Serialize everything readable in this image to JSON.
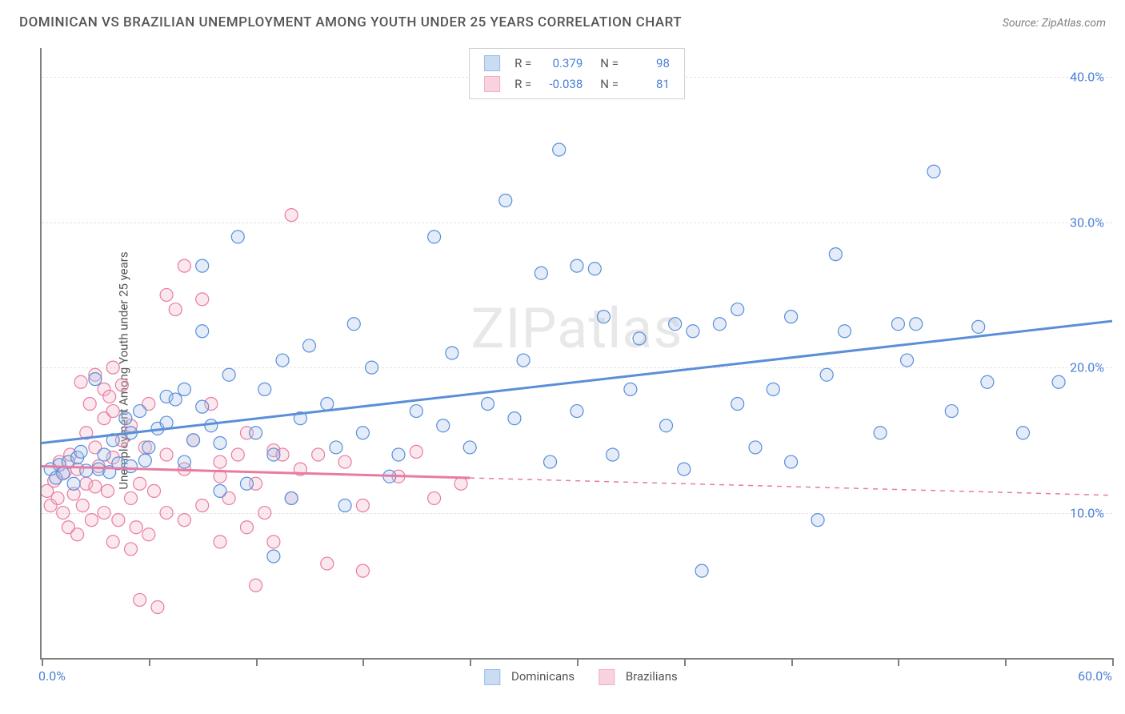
{
  "title": "DOMINICAN VS BRAZILIAN UNEMPLOYMENT AMONG YOUTH UNDER 25 YEARS CORRELATION CHART",
  "source_label": "Source: ZipAtlas.com",
  "ylabel": "Unemployment Among Youth under 25 years",
  "watermark": "ZIPatlas",
  "chart": {
    "type": "scatter",
    "xlim": [
      0,
      60
    ],
    "ylim": [
      0,
      42
    ],
    "y_ticks": [
      10.0,
      20.0,
      30.0,
      40.0
    ],
    "y_tick_labels": [
      "10.0%",
      "20.0%",
      "30.0%",
      "40.0%"
    ],
    "x_tick_minor": [
      0,
      6,
      12,
      18,
      24,
      30,
      36,
      42,
      48,
      54,
      60
    ],
    "x_left_label": "0.0%",
    "x_right_label": "60.0%",
    "background_color": "#ffffff",
    "grid_color": "#e4e4e4",
    "axis_color": "#808080",
    "marker_radius": 8,
    "marker_stroke_width": 1.2,
    "marker_fill_opacity": 0.32,
    "series": [
      {
        "name": "Dominicans",
        "r_value": "0.379",
        "n_value": "98",
        "stroke": "#5a8fd8",
        "fill": "#a7c5ea",
        "trend": {
          "y_at_x0": 14.8,
          "y_at_x60": 23.2,
          "solid_to_x": 60,
          "line_width": 3
        },
        "points": [
          [
            0.5,
            13.0
          ],
          [
            0.8,
            12.4
          ],
          [
            1.0,
            13.3
          ],
          [
            1.2,
            12.7
          ],
          [
            1.5,
            13.5
          ],
          [
            1.8,
            12.0
          ],
          [
            2.0,
            13.8
          ],
          [
            2.2,
            14.2
          ],
          [
            2.5,
            12.9
          ],
          [
            3.0,
            19.2
          ],
          [
            3.2,
            13.0
          ],
          [
            3.5,
            14.0
          ],
          [
            3.8,
            12.8
          ],
          [
            4.0,
            15.0
          ],
          [
            4.3,
            13.4
          ],
          [
            4.7,
            16.5
          ],
          [
            5.0,
            13.2
          ],
          [
            5.0,
            15.5
          ],
          [
            5.5,
            17.0
          ],
          [
            5.8,
            13.6
          ],
          [
            6.0,
            14.5
          ],
          [
            6.5,
            15.8
          ],
          [
            7.0,
            16.2
          ],
          [
            7.0,
            18.0
          ],
          [
            7.5,
            17.8
          ],
          [
            8.0,
            13.5
          ],
          [
            8.0,
            18.5
          ],
          [
            8.5,
            15.0
          ],
          [
            9.0,
            22.5
          ],
          [
            9.0,
            17.3
          ],
          [
            9.0,
            27.0
          ],
          [
            9.5,
            16.0
          ],
          [
            10.0,
            11.5
          ],
          [
            10.0,
            14.8
          ],
          [
            10.5,
            19.5
          ],
          [
            11.0,
            29.0
          ],
          [
            11.5,
            12.0
          ],
          [
            12.0,
            15.5
          ],
          [
            12.5,
            18.5
          ],
          [
            13.0,
            7.0
          ],
          [
            13.0,
            14.0
          ],
          [
            13.5,
            20.5
          ],
          [
            14.0,
            11.0
          ],
          [
            14.5,
            16.5
          ],
          [
            15.0,
            21.5
          ],
          [
            16.0,
            17.5
          ],
          [
            16.5,
            14.5
          ],
          [
            17.0,
            10.5
          ],
          [
            17.5,
            23.0
          ],
          [
            18.0,
            15.5
          ],
          [
            18.5,
            20.0
          ],
          [
            19.5,
            12.5
          ],
          [
            20.0,
            14.0
          ],
          [
            21.0,
            17.0
          ],
          [
            22.0,
            29.0
          ],
          [
            22.5,
            16.0
          ],
          [
            23.0,
            21.0
          ],
          [
            24.0,
            14.5
          ],
          [
            25.0,
            17.5
          ],
          [
            26.0,
            31.5
          ],
          [
            26.5,
            16.5
          ],
          [
            27.0,
            20.5
          ],
          [
            28.0,
            26.5
          ],
          [
            28.5,
            13.5
          ],
          [
            29.0,
            35.0
          ],
          [
            30.0,
            27.0
          ],
          [
            30.0,
            17.0
          ],
          [
            31.0,
            26.8
          ],
          [
            31.5,
            23.5
          ],
          [
            32.0,
            14.0
          ],
          [
            33.0,
            18.5
          ],
          [
            33.5,
            22.0
          ],
          [
            35.0,
            16.0
          ],
          [
            35.5,
            23.0
          ],
          [
            36.0,
            13.0
          ],
          [
            36.5,
            22.5
          ],
          [
            37.0,
            6.0
          ],
          [
            38.0,
            23.0
          ],
          [
            39.0,
            17.5
          ],
          [
            39.0,
            24.0
          ],
          [
            40.0,
            14.5
          ],
          [
            41.0,
            18.5
          ],
          [
            42.0,
            23.5
          ],
          [
            42.0,
            13.5
          ],
          [
            43.5,
            9.5
          ],
          [
            44.0,
            19.5
          ],
          [
            44.5,
            27.8
          ],
          [
            45.0,
            22.5
          ],
          [
            47.0,
            15.5
          ],
          [
            48.0,
            23.0
          ],
          [
            48.5,
            20.5
          ],
          [
            49.0,
            23.0
          ],
          [
            50.0,
            33.5
          ],
          [
            51.0,
            17.0
          ],
          [
            52.5,
            22.8
          ],
          [
            53.0,
            19.0
          ],
          [
            55.0,
            15.5
          ],
          [
            57.0,
            19.0
          ]
        ]
      },
      {
        "name": "Brazilians",
        "r_value": "-0.038",
        "n_value": "81",
        "stroke": "#e87ca0",
        "fill": "#f4b6cb",
        "trend": {
          "y_at_x0": 13.2,
          "y_at_x60": 11.2,
          "solid_to_x": 24,
          "line_width": 3
        },
        "points": [
          [
            0.3,
            11.5
          ],
          [
            0.5,
            10.5
          ],
          [
            0.7,
            12.2
          ],
          [
            0.9,
            11.0
          ],
          [
            1.0,
            13.5
          ],
          [
            1.2,
            10.0
          ],
          [
            1.3,
            12.8
          ],
          [
            1.5,
            9.0
          ],
          [
            1.6,
            14.0
          ],
          [
            1.8,
            11.3
          ],
          [
            2.0,
            13.0
          ],
          [
            2.0,
            8.5
          ],
          [
            2.2,
            19.0
          ],
          [
            2.3,
            10.5
          ],
          [
            2.5,
            12.0
          ],
          [
            2.5,
            15.5
          ],
          [
            2.7,
            17.5
          ],
          [
            2.8,
            9.5
          ],
          [
            3.0,
            19.5
          ],
          [
            3.0,
            11.8
          ],
          [
            3.0,
            14.5
          ],
          [
            3.2,
            13.2
          ],
          [
            3.5,
            16.5
          ],
          [
            3.5,
            10.0
          ],
          [
            3.5,
            18.5
          ],
          [
            3.7,
            11.5
          ],
          [
            3.8,
            18.0
          ],
          [
            4.0,
            8.0
          ],
          [
            4.0,
            17.0
          ],
          [
            4.0,
            13.8
          ],
          [
            4.0,
            20.0
          ],
          [
            4.3,
            9.5
          ],
          [
            4.5,
            15.0
          ],
          [
            4.5,
            18.8
          ],
          [
            5.0,
            7.5
          ],
          [
            5.0,
            11.0
          ],
          [
            5.0,
            16.0
          ],
          [
            5.3,
            9.0
          ],
          [
            5.5,
            12.0
          ],
          [
            5.5,
            4.0
          ],
          [
            5.8,
            14.5
          ],
          [
            6.0,
            8.5
          ],
          [
            6.0,
            17.5
          ],
          [
            6.3,
            11.5
          ],
          [
            6.5,
            3.5
          ],
          [
            7.0,
            10.0
          ],
          [
            7.0,
            14.0
          ],
          [
            7.0,
            25.0
          ],
          [
            7.5,
            24.0
          ],
          [
            8.0,
            27.0
          ],
          [
            8.0,
            9.5
          ],
          [
            8.0,
            13.0
          ],
          [
            8.5,
            15.0
          ],
          [
            9.0,
            24.7
          ],
          [
            9.0,
            10.5
          ],
          [
            9.5,
            17.5
          ],
          [
            10.0,
            8.0
          ],
          [
            10.0,
            13.5
          ],
          [
            10.0,
            12.5
          ],
          [
            10.5,
            11.0
          ],
          [
            11.0,
            14.0
          ],
          [
            11.5,
            9.0
          ],
          [
            11.5,
            15.5
          ],
          [
            12.0,
            5.0
          ],
          [
            12.0,
            12.0
          ],
          [
            12.5,
            10.0
          ],
          [
            13.0,
            8.0
          ],
          [
            13.0,
            14.3
          ],
          [
            13.5,
            14.0
          ],
          [
            14.0,
            30.5
          ],
          [
            14.0,
            11.0
          ],
          [
            14.5,
            13.0
          ],
          [
            15.5,
            14.0
          ],
          [
            16.0,
            6.5
          ],
          [
            17.0,
            13.5
          ],
          [
            18.0,
            6.0
          ],
          [
            18.0,
            10.5
          ],
          [
            20.0,
            12.5
          ],
          [
            21.0,
            14.2
          ],
          [
            22.0,
            11.0
          ],
          [
            23.5,
            12.0
          ]
        ]
      }
    ],
    "legend_top_labels": {
      "r": "R =",
      "n": "N ="
    },
    "legend_bottom": [
      "Dominicans",
      "Brazilians"
    ]
  }
}
